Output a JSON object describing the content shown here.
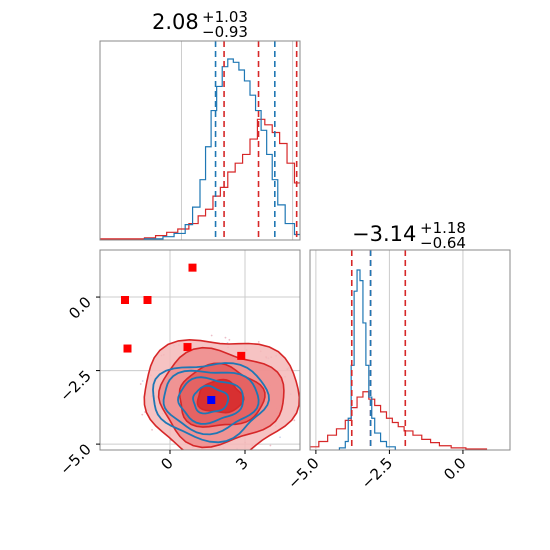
{
  "chart_data": [
    {
      "type": "histogram",
      "panel": "top-left marginal",
      "title": {
        "median": "2.08",
        "plus": "+1.03",
        "minus": "−0.93"
      },
      "xlim": [
        -2.2,
        3.2
      ],
      "grid": true,
      "series": [
        {
          "name": "",
          "color": "#d62728",
          "bins": [
            [
              -2.2,
              -1.6,
              1
            ],
            [
              -1.6,
              -1.0,
              1
            ],
            [
              -1.0,
              -0.7,
              2
            ],
            [
              -0.7,
              -0.4,
              4
            ],
            [
              -0.4,
              -0.1,
              7
            ],
            [
              -0.1,
              0.2,
              10
            ],
            [
              0.2,
              0.45,
              15
            ],
            [
              0.45,
              0.65,
              22
            ],
            [
              0.65,
              0.85,
              28
            ],
            [
              0.85,
              1.05,
              40
            ],
            [
              1.05,
              1.25,
              48
            ],
            [
              1.25,
              1.45,
              62
            ],
            [
              1.45,
              1.65,
              70
            ],
            [
              1.65,
              1.85,
              78
            ],
            [
              1.85,
              2.05,
              92
            ],
            [
              2.05,
              2.25,
              110
            ],
            [
              2.25,
              2.45,
              105
            ],
            [
              2.45,
              2.65,
              98
            ],
            [
              2.65,
              2.85,
              88
            ],
            [
              2.85,
              3.05,
              70
            ],
            [
              3.05,
              3.25,
              52
            ],
            [
              3.25,
              3.45,
              40
            ],
            [
              3.45,
              3.7,
              26
            ],
            [
              3.7,
              3.95,
              18
            ],
            [
              3.95,
              4.2,
              12
            ],
            [
              4.2,
              4.5,
              7
            ],
            [
              4.5,
              4.8,
              4
            ],
            [
              4.8,
              5.2,
              1
            ]
          ],
          "quantile_lines": [
            1.15,
            2.08,
            3.11
          ]
        },
        {
          "name": "",
          "color": "#1f77b4",
          "bins": [
            [
              -1.0,
              -0.5,
              1
            ],
            [
              -0.5,
              -0.2,
              3
            ],
            [
              -0.2,
              0.1,
              6
            ],
            [
              0.1,
              0.3,
              14
            ],
            [
              0.3,
              0.5,
              30
            ],
            [
              0.5,
              0.65,
              55
            ],
            [
              0.65,
              0.8,
              85
            ],
            [
              0.8,
              0.95,
              118
            ],
            [
              0.95,
              1.1,
              140
            ],
            [
              1.1,
              1.25,
              158
            ],
            [
              1.25,
              1.4,
              165
            ],
            [
              1.4,
              1.55,
              162
            ],
            [
              1.55,
              1.7,
              155
            ],
            [
              1.7,
              1.85,
              145
            ],
            [
              1.85,
              2.0,
              132
            ],
            [
              2.0,
              2.15,
              118
            ],
            [
              2.15,
              2.3,
              100
            ],
            [
              2.3,
              2.45,
              78
            ],
            [
              2.45,
              2.6,
              55
            ],
            [
              2.6,
              2.8,
              32
            ],
            [
              2.8,
              3.05,
              15
            ],
            [
              3.05,
              3.4,
              5
            ],
            [
              3.4,
              3.9,
              1
            ]
          ],
          "quantile_lines": [
            0.92,
            2.52
          ]
        }
      ]
    },
    {
      "type": "contour",
      "panel": "bottom-left 2D",
      "xticks": [
        "0",
        "3"
      ],
      "yticks": [
        "0.0",
        "−2.5",
        "−5.0"
      ],
      "xlim": [
        -2.8,
        5.2
      ],
      "ylim": [
        -5.2,
        1.6
      ],
      "grid": true,
      "contour_sets": [
        {
          "color": "#d62728",
          "center": [
            2.0,
            -3.4
          ],
          "levels_radii": [
            [
              0.9,
              0.55
            ],
            [
              1.7,
              1.05
            ],
            [
              2.5,
              1.6
            ],
            [
              3.1,
              2.05
            ]
          ]
        },
        {
          "color": "#1f77b4",
          "center": [
            1.6,
            -3.5
          ],
          "levels_radii": [
            [
              0.7,
              0.45
            ],
            [
              1.3,
              0.75
            ],
            [
              1.9,
              1.05
            ],
            [
              2.3,
              1.3
            ]
          ]
        }
      ],
      "markers": {
        "red": [
          [
            -1.8,
            -0.1
          ],
          [
            -0.9,
            -0.1
          ],
          [
            -1.7,
            -1.75
          ],
          [
            0.9,
            1.0
          ],
          [
            0.7,
            -1.7
          ],
          [
            2.85,
            -2.0
          ]
        ],
        "blue": [
          [
            1.65,
            -3.5
          ]
        ]
      }
    },
    {
      "type": "histogram",
      "panel": "bottom-right marginal",
      "title": {
        "median": "−3.14",
        "plus": "+1.18",
        "minus": "−0.64"
      },
      "xticks": [
        "−5.0",
        "−2.5",
        "0.0"
      ],
      "xlim": [
        -5.2,
        1.6
      ],
      "grid": true,
      "series": [
        {
          "name": "",
          "color": "#d62728",
          "bins": [
            [
              -5.2,
              -4.9,
              3
            ],
            [
              -4.9,
              -4.6,
              8
            ],
            [
              -4.6,
              -4.3,
              14
            ],
            [
              -4.3,
              -4.0,
              20
            ],
            [
              -4.0,
              -3.8,
              28
            ],
            [
              -3.8,
              -3.6,
              40
            ],
            [
              -3.6,
              -3.4,
              50
            ],
            [
              -3.4,
              -3.2,
              55
            ],
            [
              -3.2,
              -3.0,
              48
            ],
            [
              -3.0,
              -2.8,
              42
            ],
            [
              -2.8,
              -2.6,
              36
            ],
            [
              -2.6,
              -2.4,
              30
            ],
            [
              -2.4,
              -2.2,
              26
            ],
            [
              -2.2,
              -2.0,
              22
            ],
            [
              -2.0,
              -1.7,
              18
            ],
            [
              -1.7,
              -1.4,
              14
            ],
            [
              -1.4,
              -1.1,
              10
            ],
            [
              -1.1,
              -0.8,
              7
            ],
            [
              -0.8,
              -0.4,
              4
            ],
            [
              -0.4,
              0.1,
              2
            ],
            [
              0.1,
              0.8,
              1
            ]
          ],
          "quantile_lines": [
            -3.78,
            -3.14,
            -1.96
          ]
        },
        {
          "name": "",
          "color": "#1f77b4",
          "bins": [
            [
              -4.2,
              -4.0,
              2
            ],
            [
              -4.0,
              -3.9,
              8
            ],
            [
              -3.9,
              -3.8,
              30
            ],
            [
              -3.8,
              -3.7,
              80
            ],
            [
              -3.7,
              -3.6,
              150
            ],
            [
              -3.6,
              -3.5,
              170
            ],
            [
              -3.5,
              -3.4,
              160
            ],
            [
              -3.4,
              -3.3,
              120
            ],
            [
              -3.3,
              -3.2,
              80
            ],
            [
              -3.2,
              -3.1,
              50
            ],
            [
              -3.1,
              -3.0,
              30
            ],
            [
              -3.0,
              -2.8,
              16
            ],
            [
              -2.8,
              -2.6,
              8
            ],
            [
              -2.6,
              -2.3,
              3
            ]
          ],
          "quantile_lines": [
            -3.14
          ]
        }
      ]
    }
  ]
}
